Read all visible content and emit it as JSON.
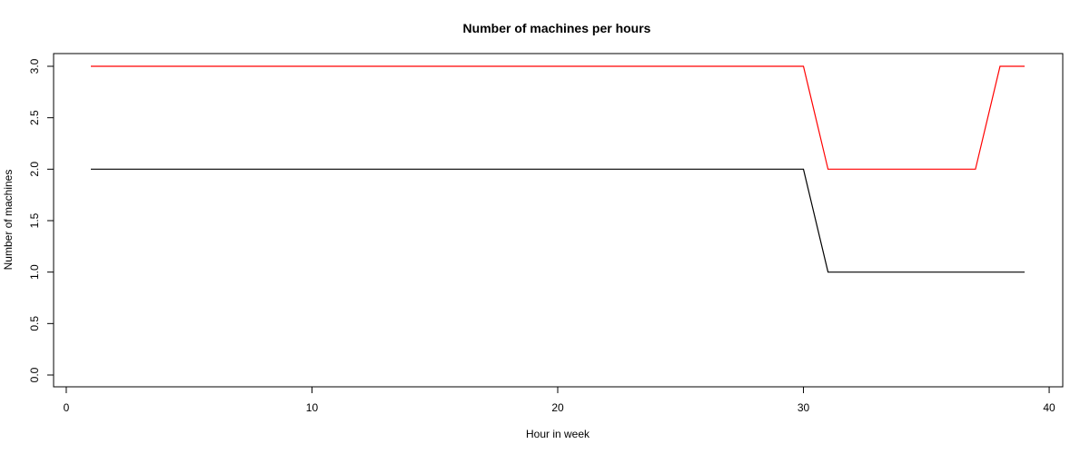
{
  "chart_data": {
    "type": "line",
    "title": "Number of machines per hours",
    "xlabel": "Hour in week",
    "ylabel": "Number of machines",
    "xlim": [
      0,
      40
    ],
    "ylim": [
      0,
      3
    ],
    "x_ticks": [
      0,
      10,
      20,
      30,
      40
    ],
    "y_ticks": [
      "0.0",
      "0.5",
      "1.0",
      "1.5",
      "2.0",
      "2.5",
      "3.0"
    ],
    "grid": false,
    "legend": "none",
    "series": [
      {
        "color": "#ff0000",
        "points": [
          [
            1,
            3
          ],
          [
            30,
            3
          ],
          [
            31,
            2
          ],
          [
            37,
            2
          ],
          [
            38,
            3
          ],
          [
            39,
            3
          ]
        ]
      },
      {
        "color": "#000000",
        "points": [
          [
            1,
            2
          ],
          [
            30,
            2
          ],
          [
            31,
            1
          ],
          [
            39,
            1
          ]
        ]
      }
    ]
  }
}
